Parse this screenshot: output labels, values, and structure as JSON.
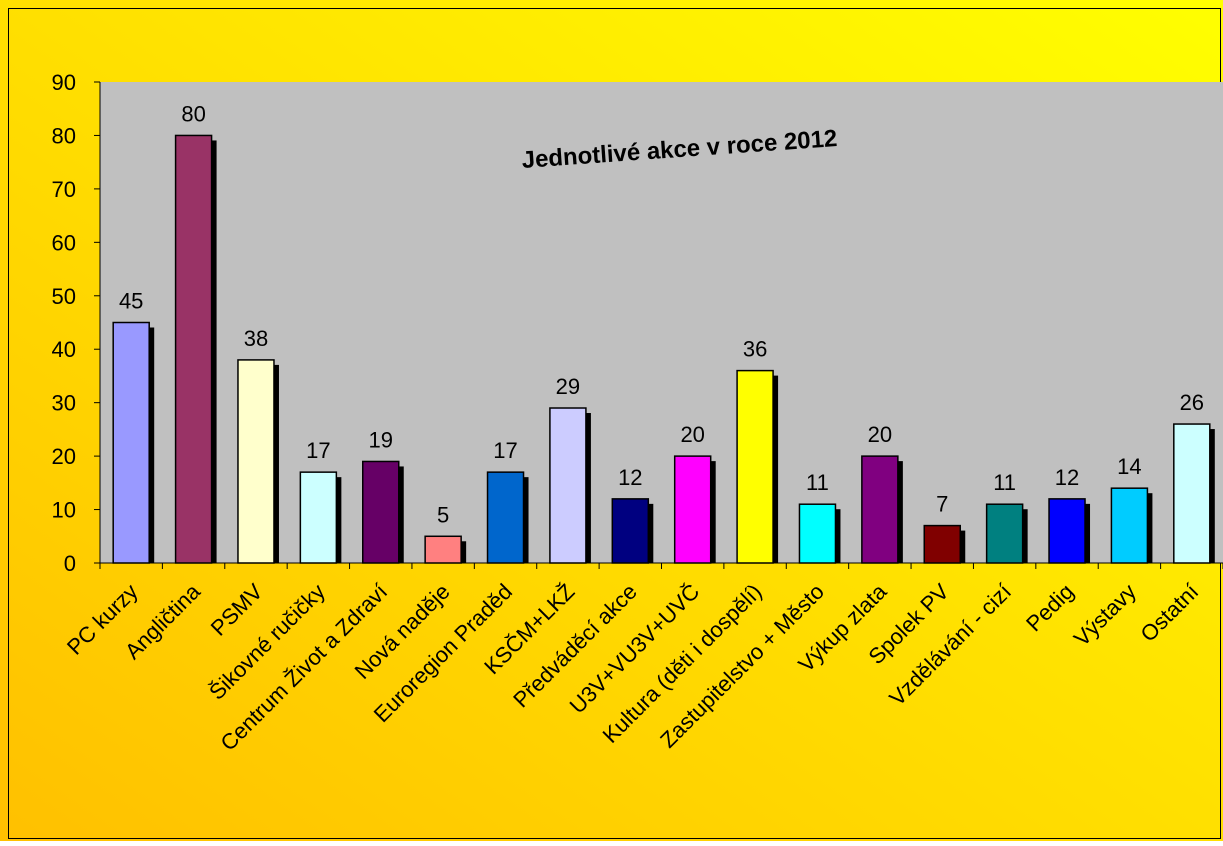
{
  "chart_data": {
    "type": "bar",
    "title": "Jednotlivé akce v roce 2012",
    "xlabel": "",
    "ylabel": "",
    "ylim": [
      0,
      90
    ],
    "yticks": [
      0,
      10,
      20,
      30,
      40,
      50,
      60,
      70,
      80,
      90
    ],
    "grid": false,
    "legend": "none",
    "categories": [
      "PC kurzy",
      "Angličtina",
      "PSMV",
      "Šikovné ručičky",
      "Centrum Život a Zdraví",
      "Nová naděje",
      "Euroregion Praděd",
      "KSČM+LKŽ",
      "Předváděcí akce",
      "U3V+VU3V+UVČ",
      "Kultura (děti i dospělí)",
      "Zastupitelstvo + Město",
      "Výkup zlata",
      "Spolek PV",
      "Vzdělávání - cizí",
      "Pedig",
      "Výstavy",
      "Ostatní"
    ],
    "values": [
      45,
      80,
      38,
      17,
      19,
      5,
      17,
      29,
      12,
      20,
      36,
      11,
      20,
      7,
      11,
      12,
      14,
      26
    ],
    "colors": [
      "#9999FF",
      "#993366",
      "#FFFFCC",
      "#CCFFFF",
      "#660066",
      "#FF8080",
      "#0066CC",
      "#CCCCFF",
      "#000080",
      "#FF00FF",
      "#FFFF00",
      "#00FFFF",
      "#800080",
      "#800000",
      "#008080",
      "#0000FF",
      "#00CCFF",
      "#CCFFFF"
    ]
  },
  "style": {
    "plot_background": "#C0C0C0",
    "page_gradient_start": "#FFC000",
    "page_gradient_end": "#FFFF00",
    "shadow_color": "#000000"
  }
}
